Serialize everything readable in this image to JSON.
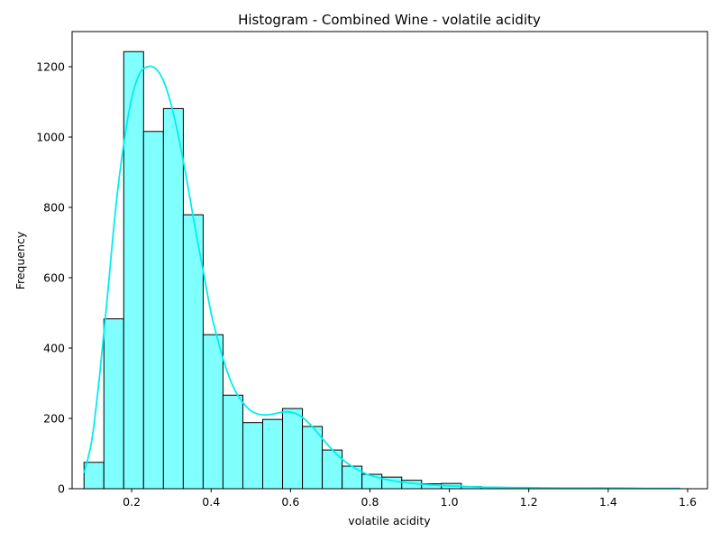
{
  "chart_data": {
    "type": "bar",
    "title": "Histogram - Combined Wine - volatile acidity",
    "xlabel": "volatile acidity",
    "ylabel": "Frequency",
    "xlim": [
      0.05,
      1.65
    ],
    "ylim": [
      0,
      1300
    ],
    "x_ticks": [
      0.2,
      0.4,
      0.6,
      0.8,
      1.0,
      1.2,
      1.4,
      1.6
    ],
    "x_tick_labels": [
      "0.2",
      "0.4",
      "0.6",
      "0.8",
      "1.0",
      "1.2",
      "1.4",
      "1.6"
    ],
    "y_ticks": [
      0,
      200,
      400,
      600,
      800,
      1000,
      1200
    ],
    "y_tick_labels": [
      "0",
      "200",
      "400",
      "600",
      "800",
      "1000",
      "1200"
    ],
    "grid": false,
    "legend": null,
    "bar_color": "#80ffff",
    "bar_edge_color": "#000000",
    "kde_color": "#00eeee",
    "bins": [
      {
        "x0": 0.08,
        "x1": 0.13,
        "count": 75
      },
      {
        "x0": 0.13,
        "x1": 0.18,
        "count": 483
      },
      {
        "x0": 0.18,
        "x1": 0.23,
        "count": 1243
      },
      {
        "x0": 0.23,
        "x1": 0.28,
        "count": 1016
      },
      {
        "x0": 0.28,
        "x1": 0.33,
        "count": 1081
      },
      {
        "x0": 0.33,
        "x1": 0.38,
        "count": 779
      },
      {
        "x0": 0.38,
        "x1": 0.43,
        "count": 438
      },
      {
        "x0": 0.43,
        "x1": 0.48,
        "count": 266
      },
      {
        "x0": 0.48,
        "x1": 0.53,
        "count": 188
      },
      {
        "x0": 0.53,
        "x1": 0.58,
        "count": 197
      },
      {
        "x0": 0.58,
        "x1": 0.63,
        "count": 228
      },
      {
        "x0": 0.63,
        "x1": 0.68,
        "count": 177
      },
      {
        "x0": 0.68,
        "x1": 0.73,
        "count": 110
      },
      {
        "x0": 0.73,
        "x1": 0.78,
        "count": 64
      },
      {
        "x0": 0.78,
        "x1": 0.83,
        "count": 41
      },
      {
        "x0": 0.83,
        "x1": 0.88,
        "count": 33
      },
      {
        "x0": 0.88,
        "x1": 0.93,
        "count": 24
      },
      {
        "x0": 0.93,
        "x1": 0.98,
        "count": 14
      },
      {
        "x0": 0.98,
        "x1": 1.03,
        "count": 15
      },
      {
        "x0": 1.03,
        "x1": 1.08,
        "count": 6
      },
      {
        "x0": 1.08,
        "x1": 1.13,
        "count": 4
      },
      {
        "x0": 1.13,
        "x1": 1.18,
        "count": 2
      },
      {
        "x0": 1.18,
        "x1": 1.23,
        "count": 2
      },
      {
        "x0": 1.23,
        "x1": 1.28,
        "count": 1
      },
      {
        "x0": 1.28,
        "x1": 1.33,
        "count": 1
      },
      {
        "x0": 1.33,
        "x1": 1.38,
        "count": 1
      },
      {
        "x0": 1.38,
        "x1": 1.43,
        "count": 1
      },
      {
        "x0": 1.43,
        "x1": 1.48,
        "count": 1
      },
      {
        "x0": 1.48,
        "x1": 1.53,
        "count": 1
      },
      {
        "x0": 1.53,
        "x1": 1.58,
        "count": 1
      }
    ],
    "kde": {
      "x": [
        0.08,
        0.1,
        0.12,
        0.14,
        0.16,
        0.18,
        0.2,
        0.22,
        0.24,
        0.26,
        0.28,
        0.3,
        0.32,
        0.34,
        0.36,
        0.38,
        0.4,
        0.42,
        0.44,
        0.46,
        0.48,
        0.5,
        0.52,
        0.54,
        0.56,
        0.58,
        0.6,
        0.62,
        0.64,
        0.66,
        0.68,
        0.7,
        0.72,
        0.74,
        0.76,
        0.78,
        0.8,
        0.85,
        0.9,
        0.95,
        1.0,
        1.05,
        1.1,
        1.2,
        1.3,
        1.4,
        1.5,
        1.58
      ],
      "y": [
        45,
        140,
        330,
        560,
        800,
        980,
        1110,
        1180,
        1200,
        1195,
        1160,
        1090,
        990,
        870,
        740,
        620,
        500,
        410,
        335,
        280,
        245,
        222,
        212,
        210,
        213,
        218,
        218,
        210,
        193,
        170,
        143,
        117,
        94,
        75,
        60,
        48,
        38,
        24,
        16,
        11,
        8,
        6,
        4,
        3,
        2,
        2,
        1,
        1
      ]
    }
  }
}
